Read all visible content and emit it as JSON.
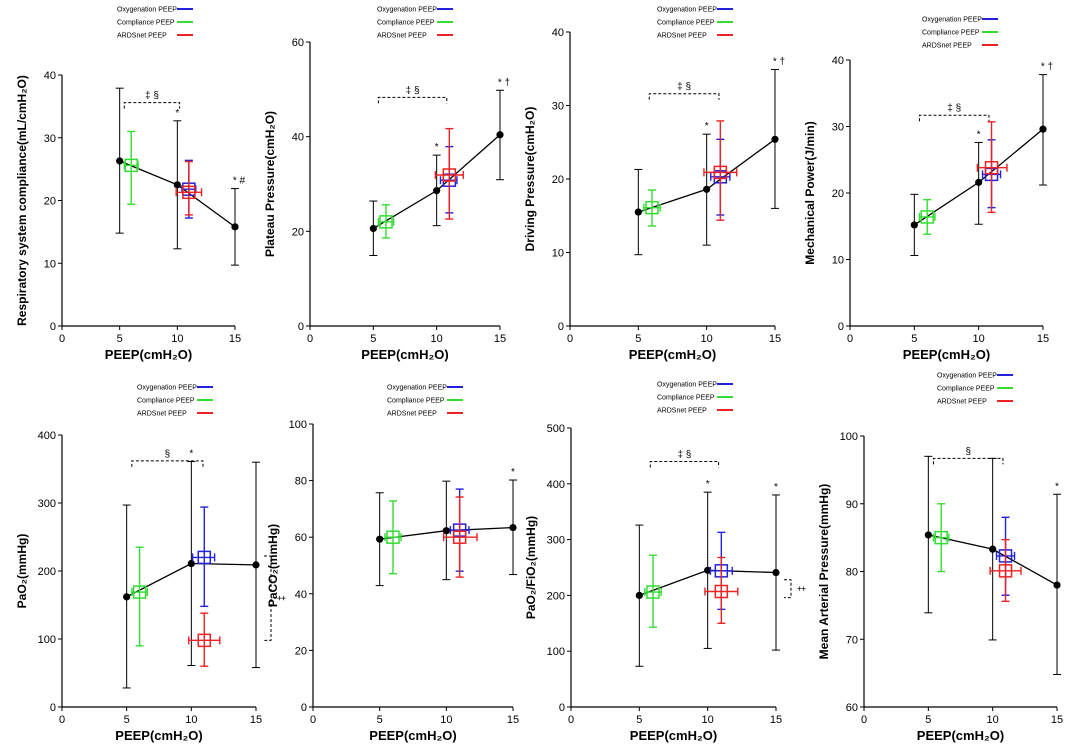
{
  "colors": {
    "ardsnet": "#000000",
    "oxygenation": "#2222dd",
    "compliance": "#33dd33",
    "ardsnet_peep": "#ee2222"
  },
  "legend": [
    "Oxygenation PEEP",
    "Compliance PEEP",
    "ARDSnet PEEP"
  ],
  "chart_data": [
    {
      "type": "scatter",
      "xlabel": "PEEP(cmH₂O)",
      "ylabel": "Respiratory system compliance(mL/cmH₂O)",
      "xlim": [
        0,
        15
      ],
      "ylim": [
        0,
        40
      ],
      "xticks": [
        "0",
        "5",
        "10",
        "15"
      ],
      "yticks": [
        "0",
        "10",
        "20",
        "30",
        "40"
      ],
      "ardsnet_line": {
        "x": [
          5,
          10,
          15
        ],
        "y": [
          26.3,
          22.5,
          15.8
        ],
        "lo": [
          14.8,
          12.3,
          9.7
        ],
        "hi": [
          37.9,
          32.7,
          21.9
        ]
      },
      "groups": [
        {
          "name": "Compliance PEEP",
          "x": 6,
          "y": 25.6,
          "lo": 19.4,
          "hi": 31.0,
          "xlo": 5.4,
          "xhi": 6.6
        },
        {
          "name": "Oxygenation PEEP",
          "x": 11,
          "y": 21.8,
          "lo": 17.2,
          "hi": 26.4,
          "xlo": 10.4,
          "xhi": 11.6
        },
        {
          "name": "ARDSnet PEEP",
          "x": 11,
          "y": 21.3,
          "lo": 17.7,
          "hi": 26.2,
          "xlo": 9.9,
          "xhi": 12.1
        }
      ],
      "stars": [
        {
          "x": 10,
          "label": "*"
        },
        {
          "x": 15,
          "label": "* #"
        }
      ],
      "bracket": {
        "x1": 5.4,
        "x2": 10.2,
        "y": 35.6,
        "label": "‡ §"
      }
    },
    {
      "type": "scatter",
      "xlabel": "PEEP(cmH₂O)",
      "ylabel": "Plateau Pressure(cmH₂O)",
      "xlim": [
        0,
        15
      ],
      "ylim": [
        0,
        60
      ],
      "xticks": [
        "0",
        "5",
        "10",
        "15"
      ],
      "yticks": [
        "0",
        "20",
        "40",
        "60"
      ],
      "ardsnet_line": {
        "x": [
          5,
          10,
          15
        ],
        "y": [
          20.6,
          28.6,
          40.4
        ],
        "lo": [
          14.9,
          21.2,
          30.9
        ],
        "hi": [
          26.4,
          36.1,
          49.8
        ]
      },
      "groups": [
        {
          "name": "Compliance PEEP",
          "x": 6,
          "y": 22.0,
          "lo": 18.6,
          "hi": 25.6,
          "xlo": 5.4,
          "xhi": 6.6
        },
        {
          "name": "Oxygenation PEEP",
          "x": 11,
          "y": 30.8,
          "lo": 23.9,
          "hi": 37.9,
          "xlo": 10.3,
          "xhi": 11.6
        },
        {
          "name": "ARDSnet PEEP",
          "x": 11,
          "y": 31.9,
          "lo": 22.6,
          "hi": 41.7,
          "xlo": 9.9,
          "xhi": 12.1
        }
      ],
      "stars": [
        {
          "x": 10,
          "label": "*"
        },
        {
          "x": 15,
          "label": "* †"
        }
      ],
      "bracket": {
        "x1": 5.4,
        "x2": 10.8,
        "y": 48.3,
        "label": "‡ §"
      }
    },
    {
      "type": "scatter",
      "xlabel": "PEEP(cmH₂O)",
      "ylabel": "Driving Pressure(cmH₂O)",
      "xlim": [
        0,
        15
      ],
      "ylim": [
        0,
        40
      ],
      "xticks": [
        "0",
        "5",
        "10",
        "15"
      ],
      "yticks": [
        "0",
        "10",
        "20",
        "30",
        "40"
      ],
      "ardsnet_line": {
        "x": [
          5,
          10,
          15
        ],
        "y": [
          15.5,
          18.6,
          25.4
        ],
        "lo": [
          9.7,
          11.0,
          16.0
        ],
        "hi": [
          21.3,
          26.1,
          34.9
        ]
      },
      "groups": [
        {
          "name": "Compliance PEEP",
          "x": 6,
          "y": 16.1,
          "lo": 13.6,
          "hi": 18.5,
          "xlo": 5.4,
          "xhi": 6.6
        },
        {
          "name": "Oxygenation PEEP",
          "x": 11,
          "y": 20.3,
          "lo": 15.1,
          "hi": 25.4,
          "xlo": 10.3,
          "xhi": 11.7
        },
        {
          "name": "ARDSnet PEEP",
          "x": 11,
          "y": 20.9,
          "lo": 14.4,
          "hi": 27.9,
          "xlo": 9.8,
          "xhi": 12.2
        }
      ],
      "stars": [
        {
          "x": 10,
          "label": "*"
        },
        {
          "x": 15,
          "label": "* †"
        }
      ],
      "bracket": {
        "x1": 5.8,
        "x2": 10.9,
        "y": 31.6,
        "label": "‡ §"
      }
    },
    {
      "type": "scatter",
      "xlabel": "PEEP(cmH₂O)",
      "ylabel": "Mechanical Power(J/min)",
      "xlim": [
        0,
        15
      ],
      "ylim": [
        0,
        40
      ],
      "xticks": [
        "0",
        "5",
        "10",
        "15"
      ],
      "yticks": [
        "0",
        "10",
        "20",
        "30",
        "40"
      ],
      "ardsnet_line": {
        "x": [
          5,
          10,
          15
        ],
        "y": [
          15.2,
          21.6,
          29.6
        ],
        "lo": [
          10.6,
          15.3,
          21.2
        ],
        "hi": [
          19.8,
          27.6,
          37.8
        ]
      },
      "groups": [
        {
          "name": "Compliance PEEP",
          "x": 6,
          "y": 16.4,
          "lo": 13.8,
          "hi": 19.0,
          "xlo": 5.4,
          "xhi": 6.6
        },
        {
          "name": "Oxygenation PEEP",
          "x": 11,
          "y": 22.8,
          "lo": 17.8,
          "hi": 28.0,
          "xlo": 10.3,
          "xhi": 11.7
        },
        {
          "name": "ARDSnet PEEP",
          "x": 11,
          "y": 23.8,
          "lo": 17.1,
          "hi": 30.7,
          "xlo": 9.9,
          "xhi": 12.2
        }
      ],
      "stars": [
        {
          "x": 10,
          "label": "*"
        },
        {
          "x": 15,
          "label": "* †"
        }
      ],
      "bracket": {
        "x1": 5.4,
        "x2": 10.8,
        "y": 31.7,
        "label": "‡ §"
      }
    },
    {
      "type": "scatter",
      "xlabel": "PEEP(cmH₂O)",
      "ylabel": "PaO₂(mmHg)",
      "xlim": [
        0,
        15
      ],
      "ylim": [
        0,
        400
      ],
      "xticks": [
        "0",
        "5",
        "10",
        "15"
      ],
      "yticks": [
        "0",
        "100",
        "200",
        "300",
        "400"
      ],
      "ardsnet_line": {
        "x": [
          5,
          10,
          15
        ],
        "y": [
          162,
          211,
          209
        ],
        "lo": [
          28,
          61,
          58
        ],
        "hi": [
          297,
          361,
          360
        ]
      },
      "groups": [
        {
          "name": "Compliance PEEP",
          "x": 6,
          "y": 169,
          "lo": 90,
          "hi": 235,
          "xlo": 5.4,
          "xhi": 6.6
        },
        {
          "name": "Oxygenation PEEP",
          "x": 11,
          "y": 220,
          "lo": 148,
          "hi": 294,
          "xlo": 10.1,
          "xhi": 11.8
        },
        {
          "name": "ARDSnet PEEP",
          "x": 11,
          "y": 98,
          "lo": 60,
          "hi": 138,
          "xlo": 9.8,
          "xhi": 12.2
        }
      ],
      "stars": [
        {
          "x": 10,
          "label": "*"
        }
      ],
      "bracket": {
        "x1": 5.4,
        "x2": 10.9,
        "y": 362,
        "label": "§"
      },
      "side_bracket": {
        "y1": 222,
        "y2": 98,
        "label": "‡"
      }
    },
    {
      "type": "scatter",
      "xlabel": "PEEP(cmH₂O)",
      "ylabel": "PaCO₂(mmHg)",
      "xlim": [
        0,
        15
      ],
      "ylim": [
        0,
        100
      ],
      "xticks": [
        "0",
        "5",
        "10",
        "15"
      ],
      "yticks": [
        "0",
        "20",
        "40",
        "60",
        "80",
        "100"
      ],
      "ardsnet_line": {
        "x": [
          5,
          10,
          15
        ],
        "y": [
          59.3,
          62.3,
          63.4
        ],
        "lo": [
          42.9,
          45.0,
          46.8
        ],
        "hi": [
          75.7,
          79.8,
          80.2
        ]
      },
      "groups": [
        {
          "name": "Compliance PEEP",
          "x": 6,
          "y": 60.0,
          "lo": 47.1,
          "hi": 72.8,
          "xlo": 5.4,
          "xhi": 6.6
        },
        {
          "name": "Oxygenation PEEP",
          "x": 11,
          "y": 62.5,
          "lo": 48.0,
          "hi": 77.0,
          "xlo": 10.3,
          "xhi": 11.7
        },
        {
          "name": "ARDSnet PEEP",
          "x": 11,
          "y": 60.0,
          "lo": 45.9,
          "hi": 74.2,
          "xlo": 9.8,
          "xhi": 12.3
        }
      ],
      "stars": [
        {
          "x": 15,
          "label": "*"
        }
      ]
    },
    {
      "type": "scatter",
      "xlabel": "PEEP(cmH₂O)",
      "ylabel": "PaO₂/FiO₂(mmHg)",
      "xlim": [
        0,
        15
      ],
      "ylim": [
        0,
        500
      ],
      "xticks": [
        "0",
        "5",
        "10",
        "15"
      ],
      "yticks": [
        "0",
        "100",
        "200",
        "300",
        "400",
        "500"
      ],
      "ardsnet_line": {
        "x": [
          5,
          10,
          15
        ],
        "y": [
          200,
          245,
          241
        ],
        "lo": [
          73,
          105,
          102
        ],
        "hi": [
          326,
          385,
          380
        ]
      },
      "groups": [
        {
          "name": "Compliance PEEP",
          "x": 6,
          "y": 206,
          "lo": 143,
          "hi": 272,
          "xlo": 5.4,
          "xhi": 6.6
        },
        {
          "name": "Oxygenation PEEP",
          "x": 11,
          "y": 244,
          "lo": 175,
          "hi": 313,
          "xlo": 10.2,
          "xhi": 11.8
        },
        {
          "name": "ARDSnet PEEP",
          "x": 11,
          "y": 207,
          "lo": 150,
          "hi": 268,
          "xlo": 9.8,
          "xhi": 12.2
        }
      ],
      "stars": [
        {
          "x": 10,
          "label": "*"
        },
        {
          "x": 15,
          "label": "*"
        }
      ],
      "bracket": {
        "x1": 5.8,
        "x2": 10.8,
        "y": 440,
        "label": "‡ §"
      },
      "side_bracket": {
        "y1": 228,
        "y2": 196,
        "label": "‡"
      }
    },
    {
      "type": "scatter",
      "xlabel": "PEEP(cmH₂O)",
      "ylabel": "Mean Arterial Pressure(mmHg)",
      "xlim": [
        0,
        15
      ],
      "ylim": [
        60,
        100
      ],
      "xticks": [
        "0",
        "5",
        "10",
        "15"
      ],
      "yticks": [
        "60",
        "70",
        "80",
        "90",
        "100"
      ],
      "ardsnet_line": {
        "x": [
          5,
          10,
          15
        ],
        "y": [
          85.4,
          83.3,
          78.0
        ],
        "lo": [
          73.9,
          69.9,
          64.8
        ],
        "hi": [
          97.0,
          96.7,
          91.4
        ]
      },
      "groups": [
        {
          "name": "Compliance PEEP",
          "x": 6,
          "y": 85.0,
          "lo": 80.0,
          "hi": 90.0,
          "xlo": 5.4,
          "xhi": 6.6
        },
        {
          "name": "Oxygenation PEEP",
          "x": 11,
          "y": 82.3,
          "lo": 76.5,
          "hi": 88.0,
          "xlo": 10.3,
          "xhi": 11.7
        },
        {
          "name": "ARDSnet PEEP",
          "x": 11,
          "y": 80.1,
          "lo": 75.6,
          "hi": 84.7,
          "xlo": 9.8,
          "xhi": 12.2
        }
      ],
      "stars": [
        {
          "x": 15,
          "label": "*"
        }
      ],
      "bracket": {
        "x1": 5.4,
        "x2": 10.8,
        "y": 96.7,
        "label": "§"
      }
    }
  ]
}
